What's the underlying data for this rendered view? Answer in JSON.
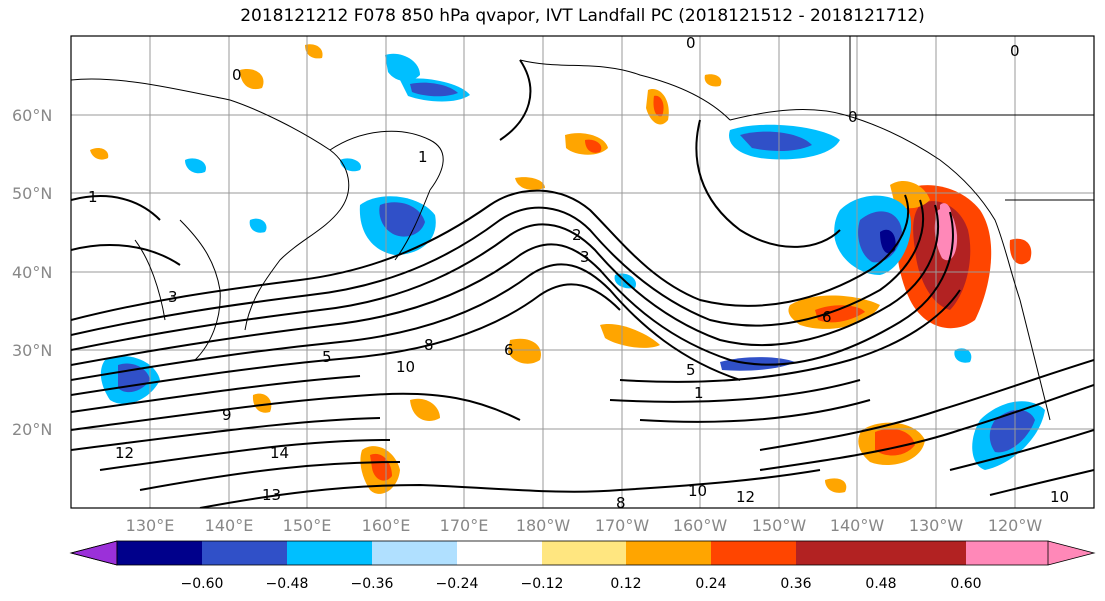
{
  "title": "2018121212 F078 850 hPa qvapor, IVT Landfall PC (2018121512 - 2018121712)",
  "lat_labels": [
    "60°N",
    "50°N",
    "40°N",
    "30°N",
    "20°N"
  ],
  "lon_labels": [
    "130°E",
    "140°E",
    "150°E",
    "160°E",
    "170°E",
    "180°W",
    "170°W",
    "160°W",
    "150°W",
    "140°W",
    "130°W",
    "120°W"
  ],
  "colorbar": {
    "ticks": [
      "−0.60",
      "−0.48",
      "−0.36",
      "−0.24",
      "−0.12",
      "0.12",
      "0.24",
      "0.36",
      "0.48",
      "0.60"
    ],
    "colors": [
      "#9b30d9",
      "#00008b",
      "#3050c8",
      "#00bfff",
      "#b0e0ff",
      "#ffffff",
      "#ffe680",
      "#ffa500",
      "#ff4500",
      "#b22222",
      "#ff88b8"
    ]
  },
  "contour_labels": [
    "0",
    "0",
    "0",
    "0",
    "1",
    "1",
    "1",
    "2",
    "3",
    "3",
    "5",
    "5",
    "6",
    "6",
    "8",
    "8",
    "9",
    "10",
    "10",
    "10",
    "12",
    "12",
    "13",
    "14"
  ]
}
